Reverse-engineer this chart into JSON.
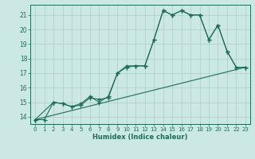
{
  "title": "",
  "xlabel": "Humidex (Indice chaleur)",
  "bg_color": "#cce8e4",
  "line_color": "#1e6b5a",
  "grid_color": "#aacfcb",
  "xlim": [
    -0.5,
    23.5
  ],
  "ylim": [
    13.5,
    21.7
  ],
  "yticks": [
    14,
    15,
    16,
    17,
    18,
    19,
    20,
    21
  ],
  "xticks": [
    0,
    1,
    2,
    3,
    4,
    5,
    6,
    7,
    8,
    9,
    10,
    11,
    12,
    13,
    14,
    15,
    16,
    17,
    18,
    19,
    20,
    21,
    22,
    23
  ],
  "series1_x": [
    0,
    1,
    2,
    3,
    4,
    5,
    6,
    7,
    8,
    9,
    10,
    11,
    12,
    13,
    14,
    15,
    16,
    17,
    18,
    19,
    20,
    21,
    22,
    23
  ],
  "series1_y": [
    13.8,
    13.8,
    15.0,
    14.9,
    14.7,
    14.8,
    15.3,
    15.2,
    15.3,
    17.0,
    17.5,
    17.5,
    17.5,
    19.3,
    21.3,
    21.0,
    21.3,
    21.0,
    21.0,
    19.3,
    20.3,
    18.5,
    17.4,
    17.4
  ],
  "series2_x": [
    0,
    2,
    3,
    4,
    5,
    6,
    7,
    8,
    9,
    10,
    11,
    12,
    13,
    14,
    15,
    16,
    17,
    18,
    19,
    20,
    21,
    22,
    23
  ],
  "series2_y": [
    13.8,
    15.0,
    14.9,
    14.7,
    14.9,
    15.4,
    15.0,
    15.4,
    17.0,
    17.4,
    17.5,
    17.5,
    19.3,
    21.3,
    21.0,
    21.3,
    21.0,
    21.0,
    19.3,
    20.3,
    18.5,
    17.4,
    17.4
  ],
  "series3_x": [
    0,
    23
  ],
  "series3_y": [
    13.8,
    17.4
  ],
  "line_width": 0.8,
  "marker_size": 2.0
}
